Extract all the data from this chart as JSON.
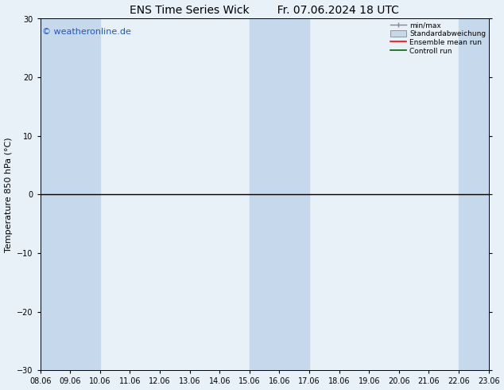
{
  "title": "ENS Time Series Wick        Fr. 07.06.2024 18 UTC",
  "ylabel": "Temperature 850 hPa (°C)",
  "ylim": [
    -30,
    30
  ],
  "yticks": [
    -30,
    -20,
    -10,
    0,
    10,
    20,
    30
  ],
  "x_labels": [
    "08.06",
    "09.06",
    "10.06",
    "11.06",
    "12.06",
    "13.06",
    "14.06",
    "15.06",
    "16.06",
    "17.06",
    "18.06",
    "19.06",
    "20.06",
    "21.06",
    "22.06",
    "23.06"
  ],
  "num_days": 16,
  "watermark": "© weatheronline.de",
  "bg_color": "#e8f0f8",
  "plot_bg_color": "#e8f0f8",
  "stripe_color": "#c5d8ec",
  "zero_line_color": "#000000",
  "green_line_color": "#006600",
  "legend_labels": [
    "min/max",
    "Standardabweichung",
    "Ensemble mean run",
    "Controll run"
  ],
  "legend_colors": [
    "#888888",
    "#aabccc",
    "#ff0000",
    "#006600"
  ],
  "title_fontsize": 10,
  "label_fontsize": 8,
  "tick_fontsize": 7,
  "watermark_color": "#2255cc",
  "watermark_fontsize": 8,
  "shaded_columns": [
    0,
    1,
    7,
    8,
    14
  ]
}
